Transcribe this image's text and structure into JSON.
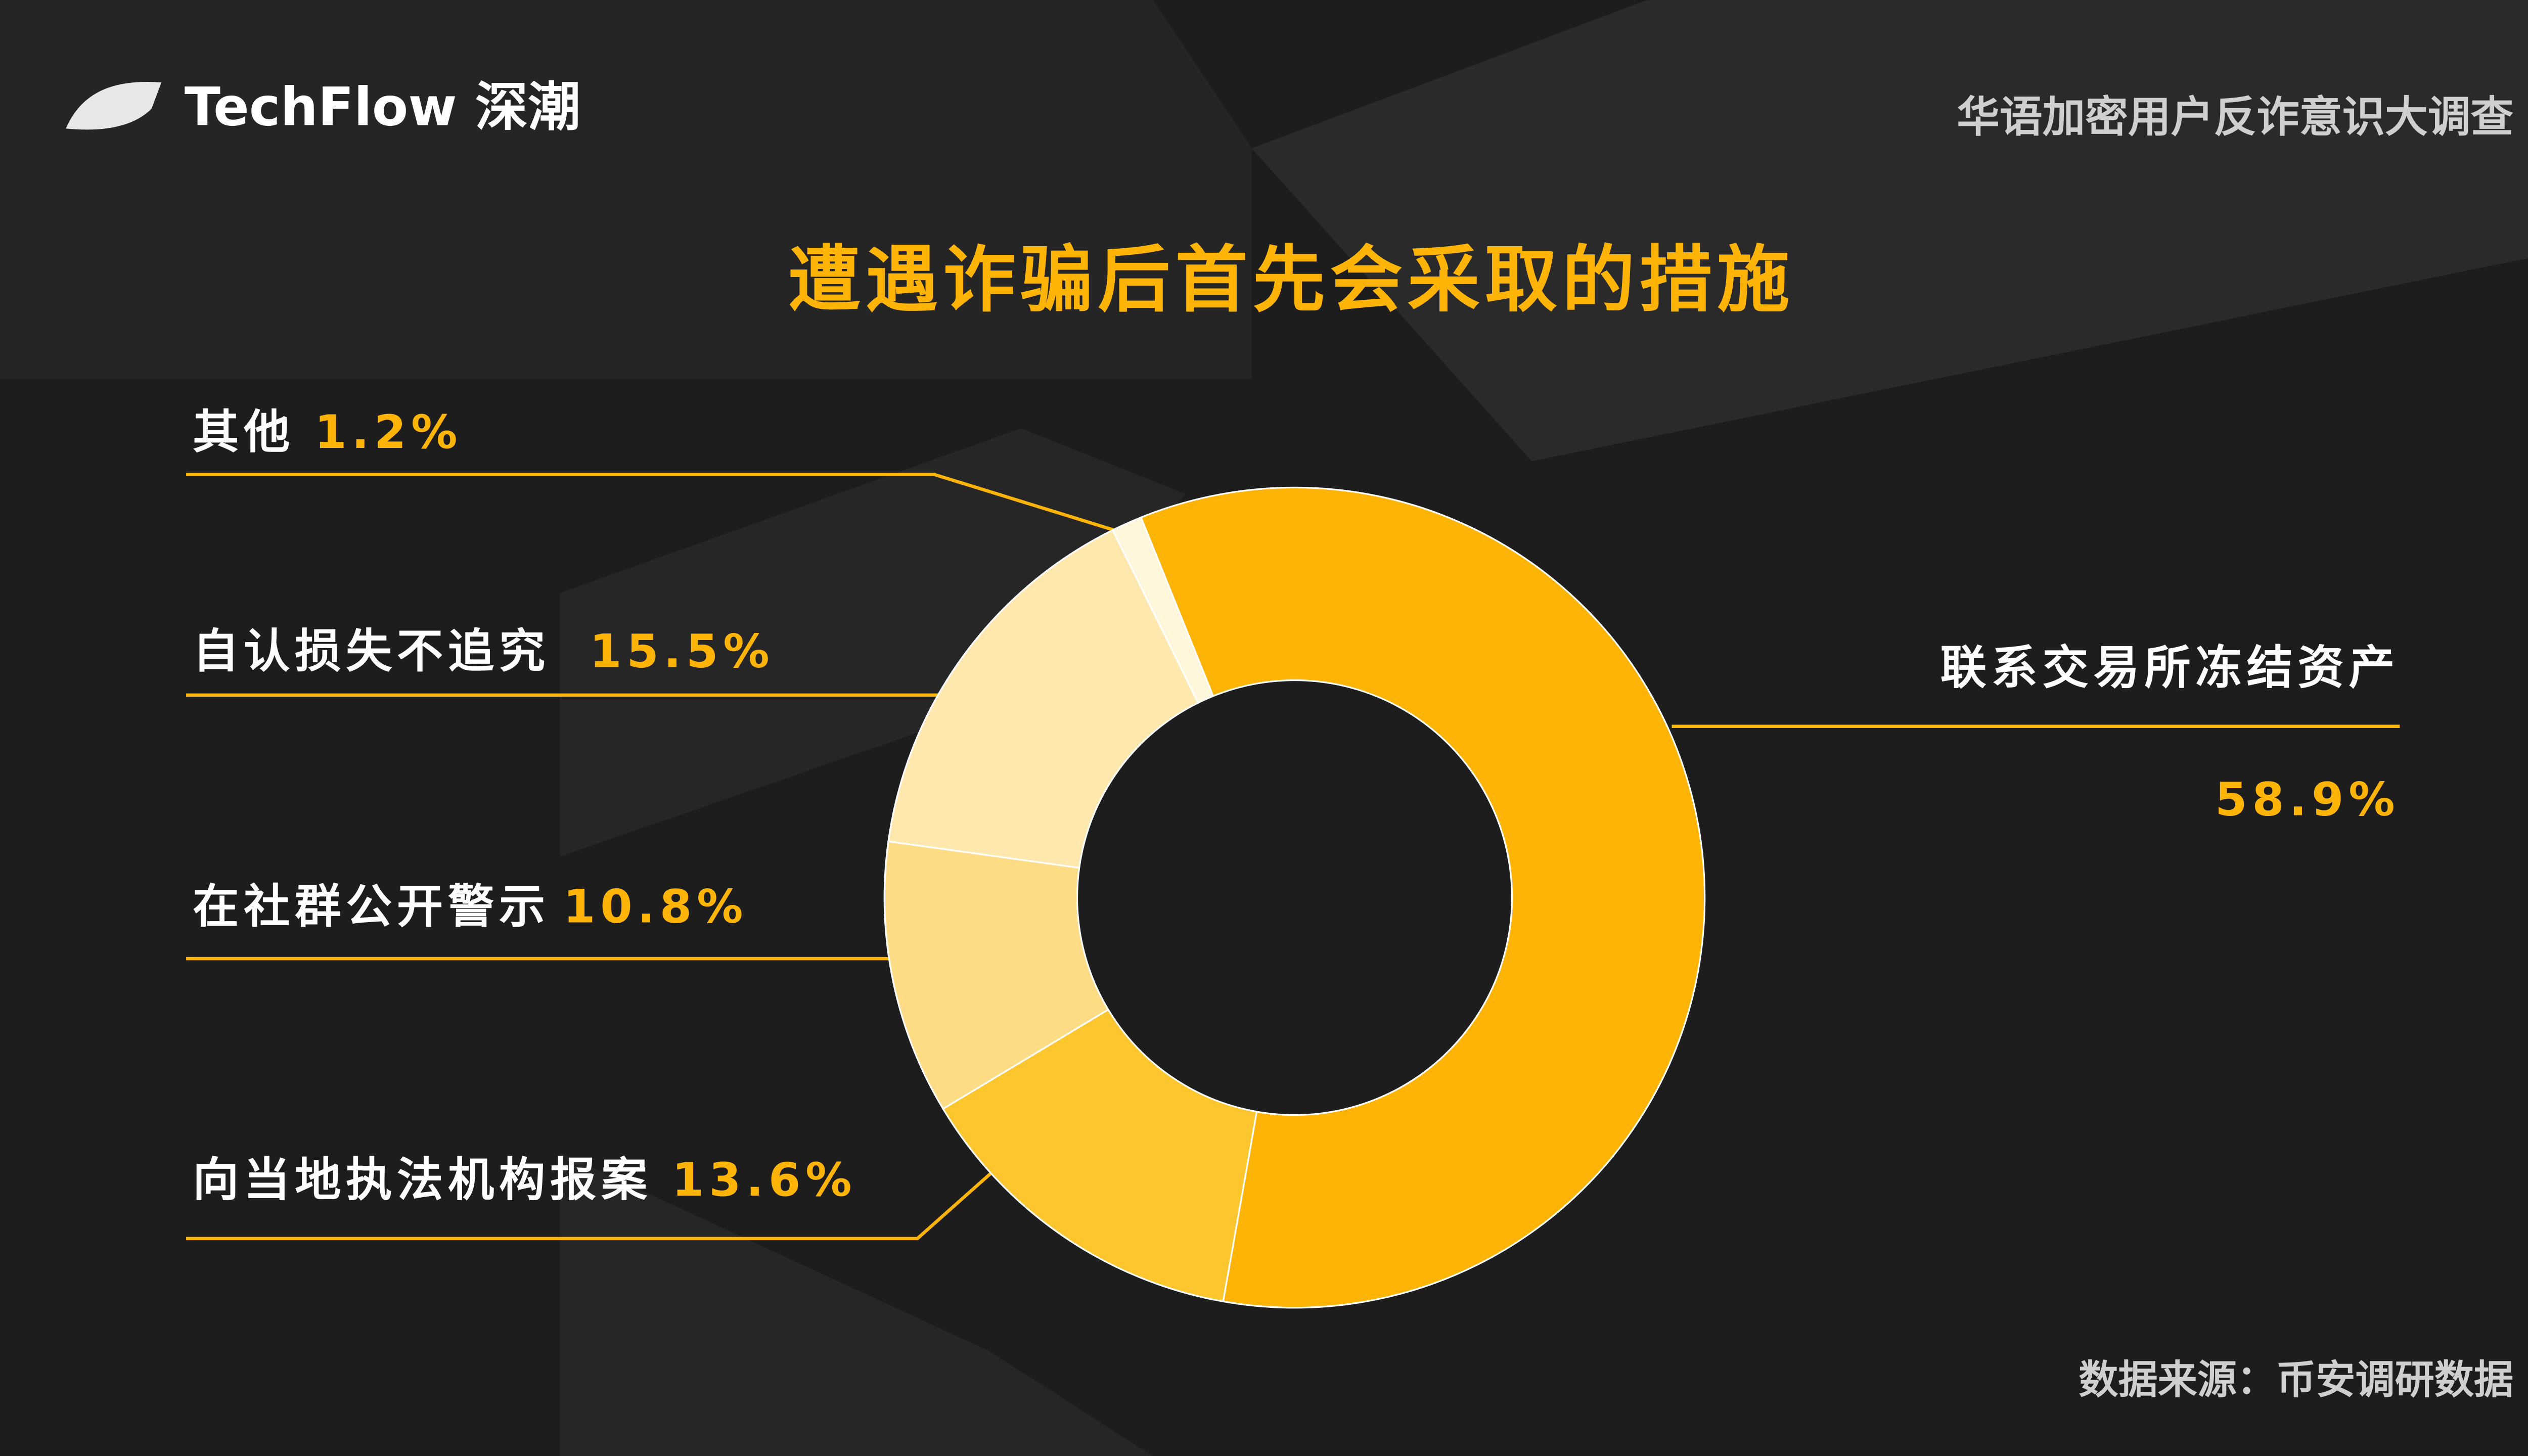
{
  "header": {
    "logo": "TechFlow 深潮",
    "survey": "华语加密用户反诈意识大调查"
  },
  "chart_data": {
    "type": "donut",
    "title": "遭遇诈骗后首先会采取的措施",
    "categories": [
      "联系交易所冻结资产",
      "向当地执法机构报案",
      "在社群公开警示",
      "自认损失不追究",
      "其他"
    ],
    "values": [
      58.9,
      13.6,
      10.8,
      15.5,
      1.2
    ],
    "value_labels": [
      "58.9%",
      "13.6%",
      "10.8%",
      "15.5%",
      "1.2%"
    ],
    "colors": [
      "#fdb407",
      "#fdc62e",
      "#fedc85",
      "#fee8ae",
      "#fff6dc"
    ],
    "source": "数据来源：币安调研数据"
  }
}
